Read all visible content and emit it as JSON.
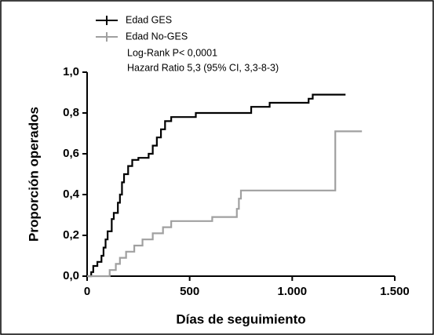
{
  "chart_data": {
    "type": "step",
    "x_label": "Días de seguimiento",
    "y_label": "Proporción operados",
    "annotations": [
      "Log-Rank P< 0,0001",
      "Hazard Ratio 5,3 (95% CI, 3,3-8-3)"
    ],
    "xlim": [
      0,
      1500
    ],
    "ylim": [
      0,
      1
    ],
    "xticks": [
      0,
      500,
      {
        "value": 1000,
        "label": "1.000"
      },
      {
        "value": 1500,
        "label": "1.500"
      }
    ],
    "yticks": [
      {
        "value": 0,
        "label": "0,0"
      },
      {
        "value": 0.2,
        "label": "0,2"
      },
      {
        "value": 0.4,
        "label": "0,4"
      },
      {
        "value": 0.6,
        "label": "0,6"
      },
      {
        "value": 0.8,
        "label": "0,8"
      },
      {
        "value": 1,
        "label": "1,0"
      }
    ],
    "series": [
      {
        "name": "Edad GES",
        "color": "#000000",
        "x": [
          0,
          20,
          30,
          50,
          70,
          80,
          90,
          100,
          120,
          130,
          150,
          160,
          170,
          180,
          200,
          220,
          250,
          300,
          320,
          340,
          360,
          380,
          410,
          530,
          800,
          890,
          1080,
          1100,
          1260
        ],
        "values": [
          0,
          0.02,
          0.05,
          0.07,
          0.1,
          0.14,
          0.18,
          0.22,
          0.28,
          0.31,
          0.36,
          0.4,
          0.46,
          0.5,
          0.54,
          0.57,
          0.58,
          0.6,
          0.64,
          0.68,
          0.72,
          0.76,
          0.78,
          0.8,
          0.83,
          0.85,
          0.87,
          0.89,
          0.89
        ]
      },
      {
        "name": "Edad No-GES",
        "color": "#a0a0a0",
        "x": [
          0,
          110,
          140,
          160,
          190,
          230,
          270,
          320,
          370,
          410,
          610,
          730,
          740,
          750,
          1210,
          1340
        ],
        "values": [
          0,
          0.03,
          0.06,
          0.09,
          0.12,
          0.15,
          0.18,
          0.21,
          0.24,
          0.27,
          0.29,
          0.33,
          0.38,
          0.42,
          0.71,
          0.71
        ]
      }
    ]
  }
}
